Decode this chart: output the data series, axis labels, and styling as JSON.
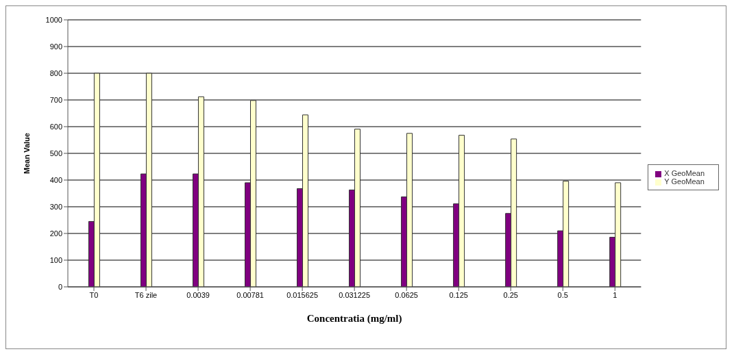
{
  "chart_data": {
    "type": "bar",
    "xlabel": "Concentratia (mg/ml)",
    "ylabel": "Mean Value",
    "categories": [
      "T0",
      "T6 zile",
      "0.0039",
      "0.00781",
      "0.015625",
      "0.031225",
      "0.0625",
      "0.125",
      "0.25",
      "0.5",
      "1"
    ],
    "series": [
      {
        "name": "X GeoMean",
        "color": "#800080",
        "values": [
          245,
          423,
          423,
          390,
          368,
          363,
          337,
          311,
          275,
          210,
          186
        ]
      },
      {
        "name": "Y GeoMean",
        "color": "#ffffcc",
        "values": [
          800,
          800,
          712,
          698,
          644,
          591,
          575,
          568,
          554,
          396,
          390
        ]
      }
    ],
    "ylim": [
      0,
      1000
    ],
    "yticks": [
      0,
      100,
      200,
      300,
      400,
      500,
      600,
      700,
      800,
      900,
      1000
    ],
    "grid": "y",
    "legend": "right"
  }
}
